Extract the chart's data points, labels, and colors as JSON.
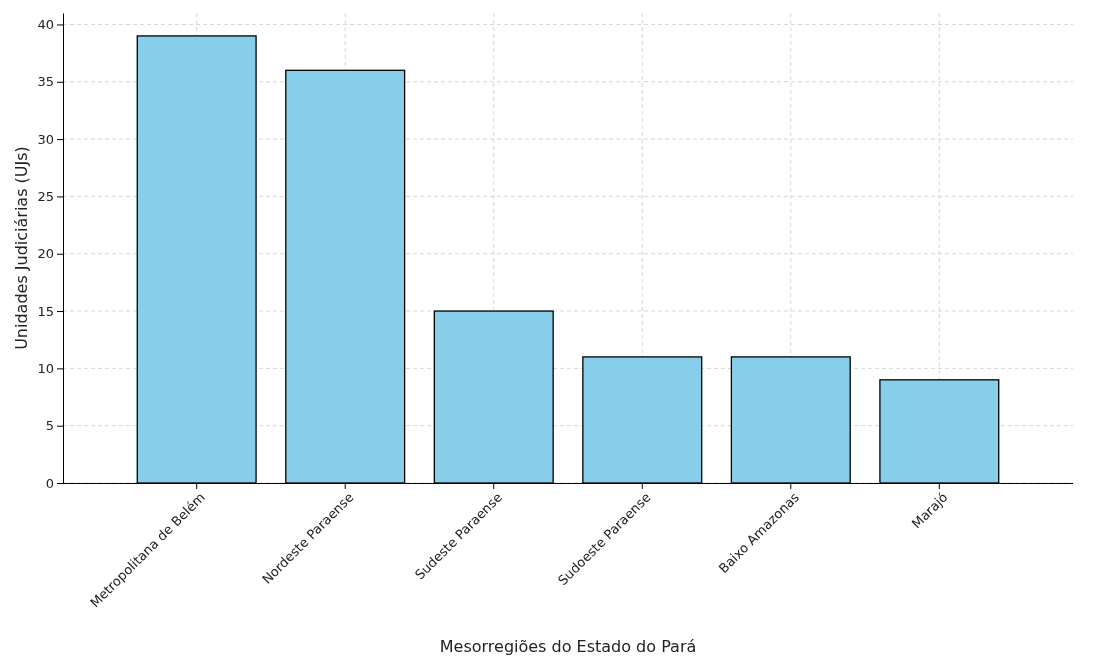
{
  "chart_data": {
    "type": "bar",
    "xlabel": "Mesorregiões do Estado do Pará",
    "ylabel": "Unidades Judiciárias (UJs)",
    "categories": [
      "Metropolitana de Belém",
      "Nordeste Paraense",
      "Sudeste Paraense",
      "Sudoeste Paraense",
      "Baixo Amazonas",
      "Marajó"
    ],
    "values": [
      39,
      36,
      15,
      11,
      11,
      9
    ],
    "color": "#87ceeb",
    "ylim": [
      0,
      41
    ],
    "yticks": [
      0,
      5,
      10,
      15,
      20,
      25,
      30,
      35,
      40
    ],
    "grid": true
  }
}
